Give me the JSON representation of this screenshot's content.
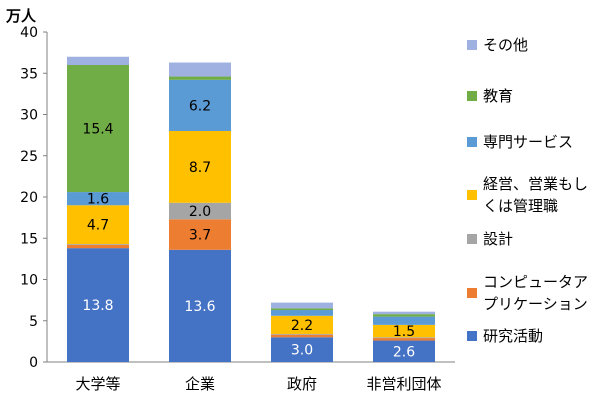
{
  "chart_data": {
    "type": "bar",
    "stacked": true,
    "unit_label": "万人",
    "categories": [
      "大学等",
      "企業",
      "政府",
      "非営利団体"
    ],
    "ylim": [
      0,
      40
    ],
    "yticks": [
      0,
      5,
      10,
      15,
      20,
      25,
      30,
      35,
      40
    ],
    "grid": false,
    "legend_position": "right",
    "series": [
      {
        "name": "研究活動",
        "color": "#4472C4",
        "values": [
          13.8,
          13.6,
          3.0,
          2.6
        ],
        "labels": [
          "13.8",
          "13.6",
          "3.0",
          "2.6"
        ],
        "label_color": "#ffffff"
      },
      {
        "name": "コンピュータアプリケーション",
        "name_lines": [
          "コンピュータア",
          "プリケーション"
        ],
        "color": "#ED7D31",
        "values": [
          0.4,
          3.7,
          0.3,
          0.3
        ],
        "labels": [
          "",
          "3.7",
          "",
          ""
        ],
        "label_color": "#000000"
      },
      {
        "name": "設計",
        "color": "#A5A5A5",
        "values": [
          0.1,
          2.0,
          0.1,
          0.1
        ],
        "labels": [
          "",
          "2.0",
          "",
          ""
        ],
        "label_color": "#000000"
      },
      {
        "name": "経営、営業もしくは管理職",
        "name_lines": [
          "経営、営業もし",
          "くは管理職"
        ],
        "color": "#FFC000",
        "values": [
          4.7,
          8.7,
          2.2,
          1.5
        ],
        "labels": [
          "4.7",
          "8.7",
          "2.2",
          "1.5"
        ],
        "label_color": "#000000"
      },
      {
        "name": "専門サービス",
        "color": "#5B9BD5",
        "values": [
          1.6,
          6.2,
          0.7,
          1.0
        ],
        "labels": [
          "1.6",
          "6.2",
          "",
          ""
        ],
        "label_color": "#000000"
      },
      {
        "name": "教育",
        "color": "#70AD47",
        "values": [
          15.4,
          0.4,
          0.2,
          0.3
        ],
        "labels": [
          "15.4",
          "",
          "",
          ""
        ],
        "label_color": "#000000"
      },
      {
        "name": "その他",
        "color": "#9EB1E0",
        "values": [
          1.0,
          1.7,
          0.7,
          0.3
        ],
        "labels": [
          "",
          "",
          "",
          ""
        ],
        "label_color": "#000000"
      }
    ]
  }
}
